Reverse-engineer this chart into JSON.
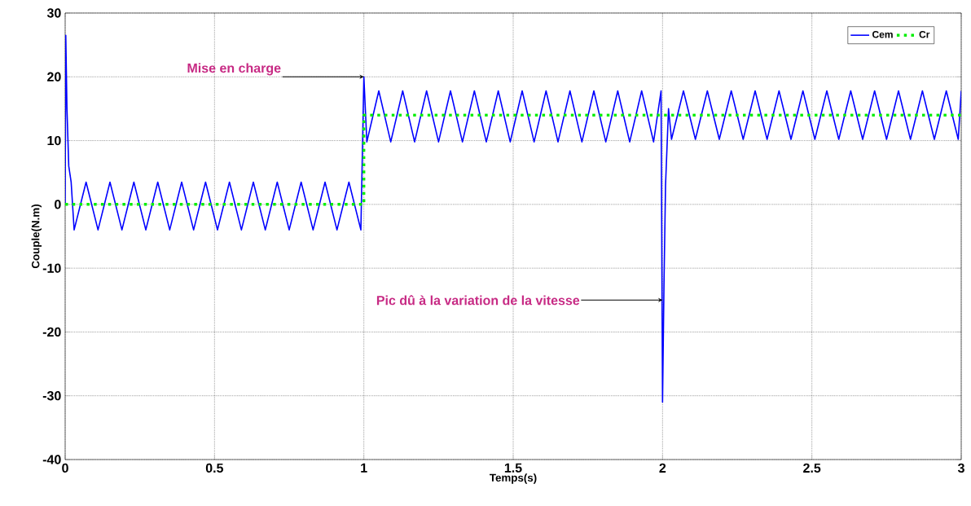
{
  "chart_data": {
    "type": "line",
    "xlabel": "Temps(s)",
    "ylabel": "Couple(N.m)",
    "xlim": [
      0,
      3
    ],
    "ylim": [
      -40,
      30
    ],
    "xticks": [
      0,
      {
        "value": 0.5,
        "label": "0.5"
      },
      1,
      {
        "value": 1.5,
        "label": "1.5"
      },
      2,
      {
        "value": 2.5,
        "label": "2.5"
      },
      3
    ],
    "yticks": [
      -40,
      -30,
      -20,
      -10,
      0,
      10,
      20,
      30
    ],
    "grid": true,
    "legend": "top right",
    "annotations": [
      {
        "text": "Mise en charge",
        "x": 1,
        "y": 20
      },
      {
        "text": "Pic dû à la variation de la vitesse",
        "x": 2,
        "y": -15
      }
    ],
    "series": [
      {
        "name": "Cem",
        "color": "#0000ff",
        "line_style": "solid",
        "x": [
          0,
          0.002,
          0.006,
          0.012,
          0.02,
          0.03,
          0.07,
          0.11,
          0.15,
          0.19,
          0.23,
          0.27,
          0.31,
          0.35,
          0.39,
          0.43,
          0.47,
          0.51,
          0.55,
          0.59,
          0.63,
          0.67,
          0.71,
          0.75,
          0.79,
          0.83,
          0.87,
          0.91,
          0.95,
          0.99,
          1.0,
          1.01,
          1.05,
          1.09,
          1.13,
          1.17,
          1.21,
          1.25,
          1.29,
          1.33,
          1.37,
          1.41,
          1.45,
          1.49,
          1.53,
          1.57,
          1.61,
          1.65,
          1.69,
          1.73,
          1.77,
          1.81,
          1.85,
          1.89,
          1.93,
          1.97,
          1.995,
          2.0,
          2.005,
          2.01,
          2.015,
          2.02,
          2.03,
          2.07,
          2.11,
          2.15,
          2.19,
          2.23,
          2.27,
          2.31,
          2.35,
          2.39,
          2.43,
          2.47,
          2.51,
          2.55,
          2.59,
          2.63,
          2.67,
          2.71,
          2.75,
          2.79,
          2.83,
          2.87,
          2.91,
          2.95,
          2.99,
          3.0
        ],
        "values": [
          0,
          26.5,
          15,
          6,
          3.5,
          -4,
          3.5,
          -4,
          3.5,
          -4,
          3.5,
          -4,
          3.5,
          -4,
          3.5,
          -4,
          3.5,
          -4,
          3.5,
          -4,
          3.5,
          -4,
          3.5,
          -4,
          3.5,
          -4,
          3.5,
          -4,
          3.5,
          -4,
          20,
          9.8,
          17.8,
          9.8,
          17.8,
          9.8,
          17.8,
          9.8,
          17.8,
          9.8,
          17.8,
          9.8,
          17.8,
          9.8,
          17.8,
          9.8,
          17.8,
          9.8,
          17.8,
          9.8,
          17.8,
          9.8,
          17.8,
          9.8,
          17.8,
          9.8,
          17.8,
          -31,
          -12,
          3,
          9,
          15,
          10.2,
          17.8,
          10.2,
          17.8,
          10.2,
          17.8,
          10.2,
          17.8,
          10.2,
          17.8,
          10.2,
          17.8,
          10.2,
          17.8,
          10.2,
          17.8,
          10.2,
          17.8,
          10.2,
          17.8,
          10.2,
          17.8,
          10.2,
          17.8,
          10.2,
          17.8
        ]
      },
      {
        "name": "Cr",
        "color": "#00ee00",
        "line_style": "dotted",
        "x": [
          0,
          1,
          1,
          3
        ],
        "values": [
          0,
          0,
          14,
          14
        ]
      }
    ]
  }
}
